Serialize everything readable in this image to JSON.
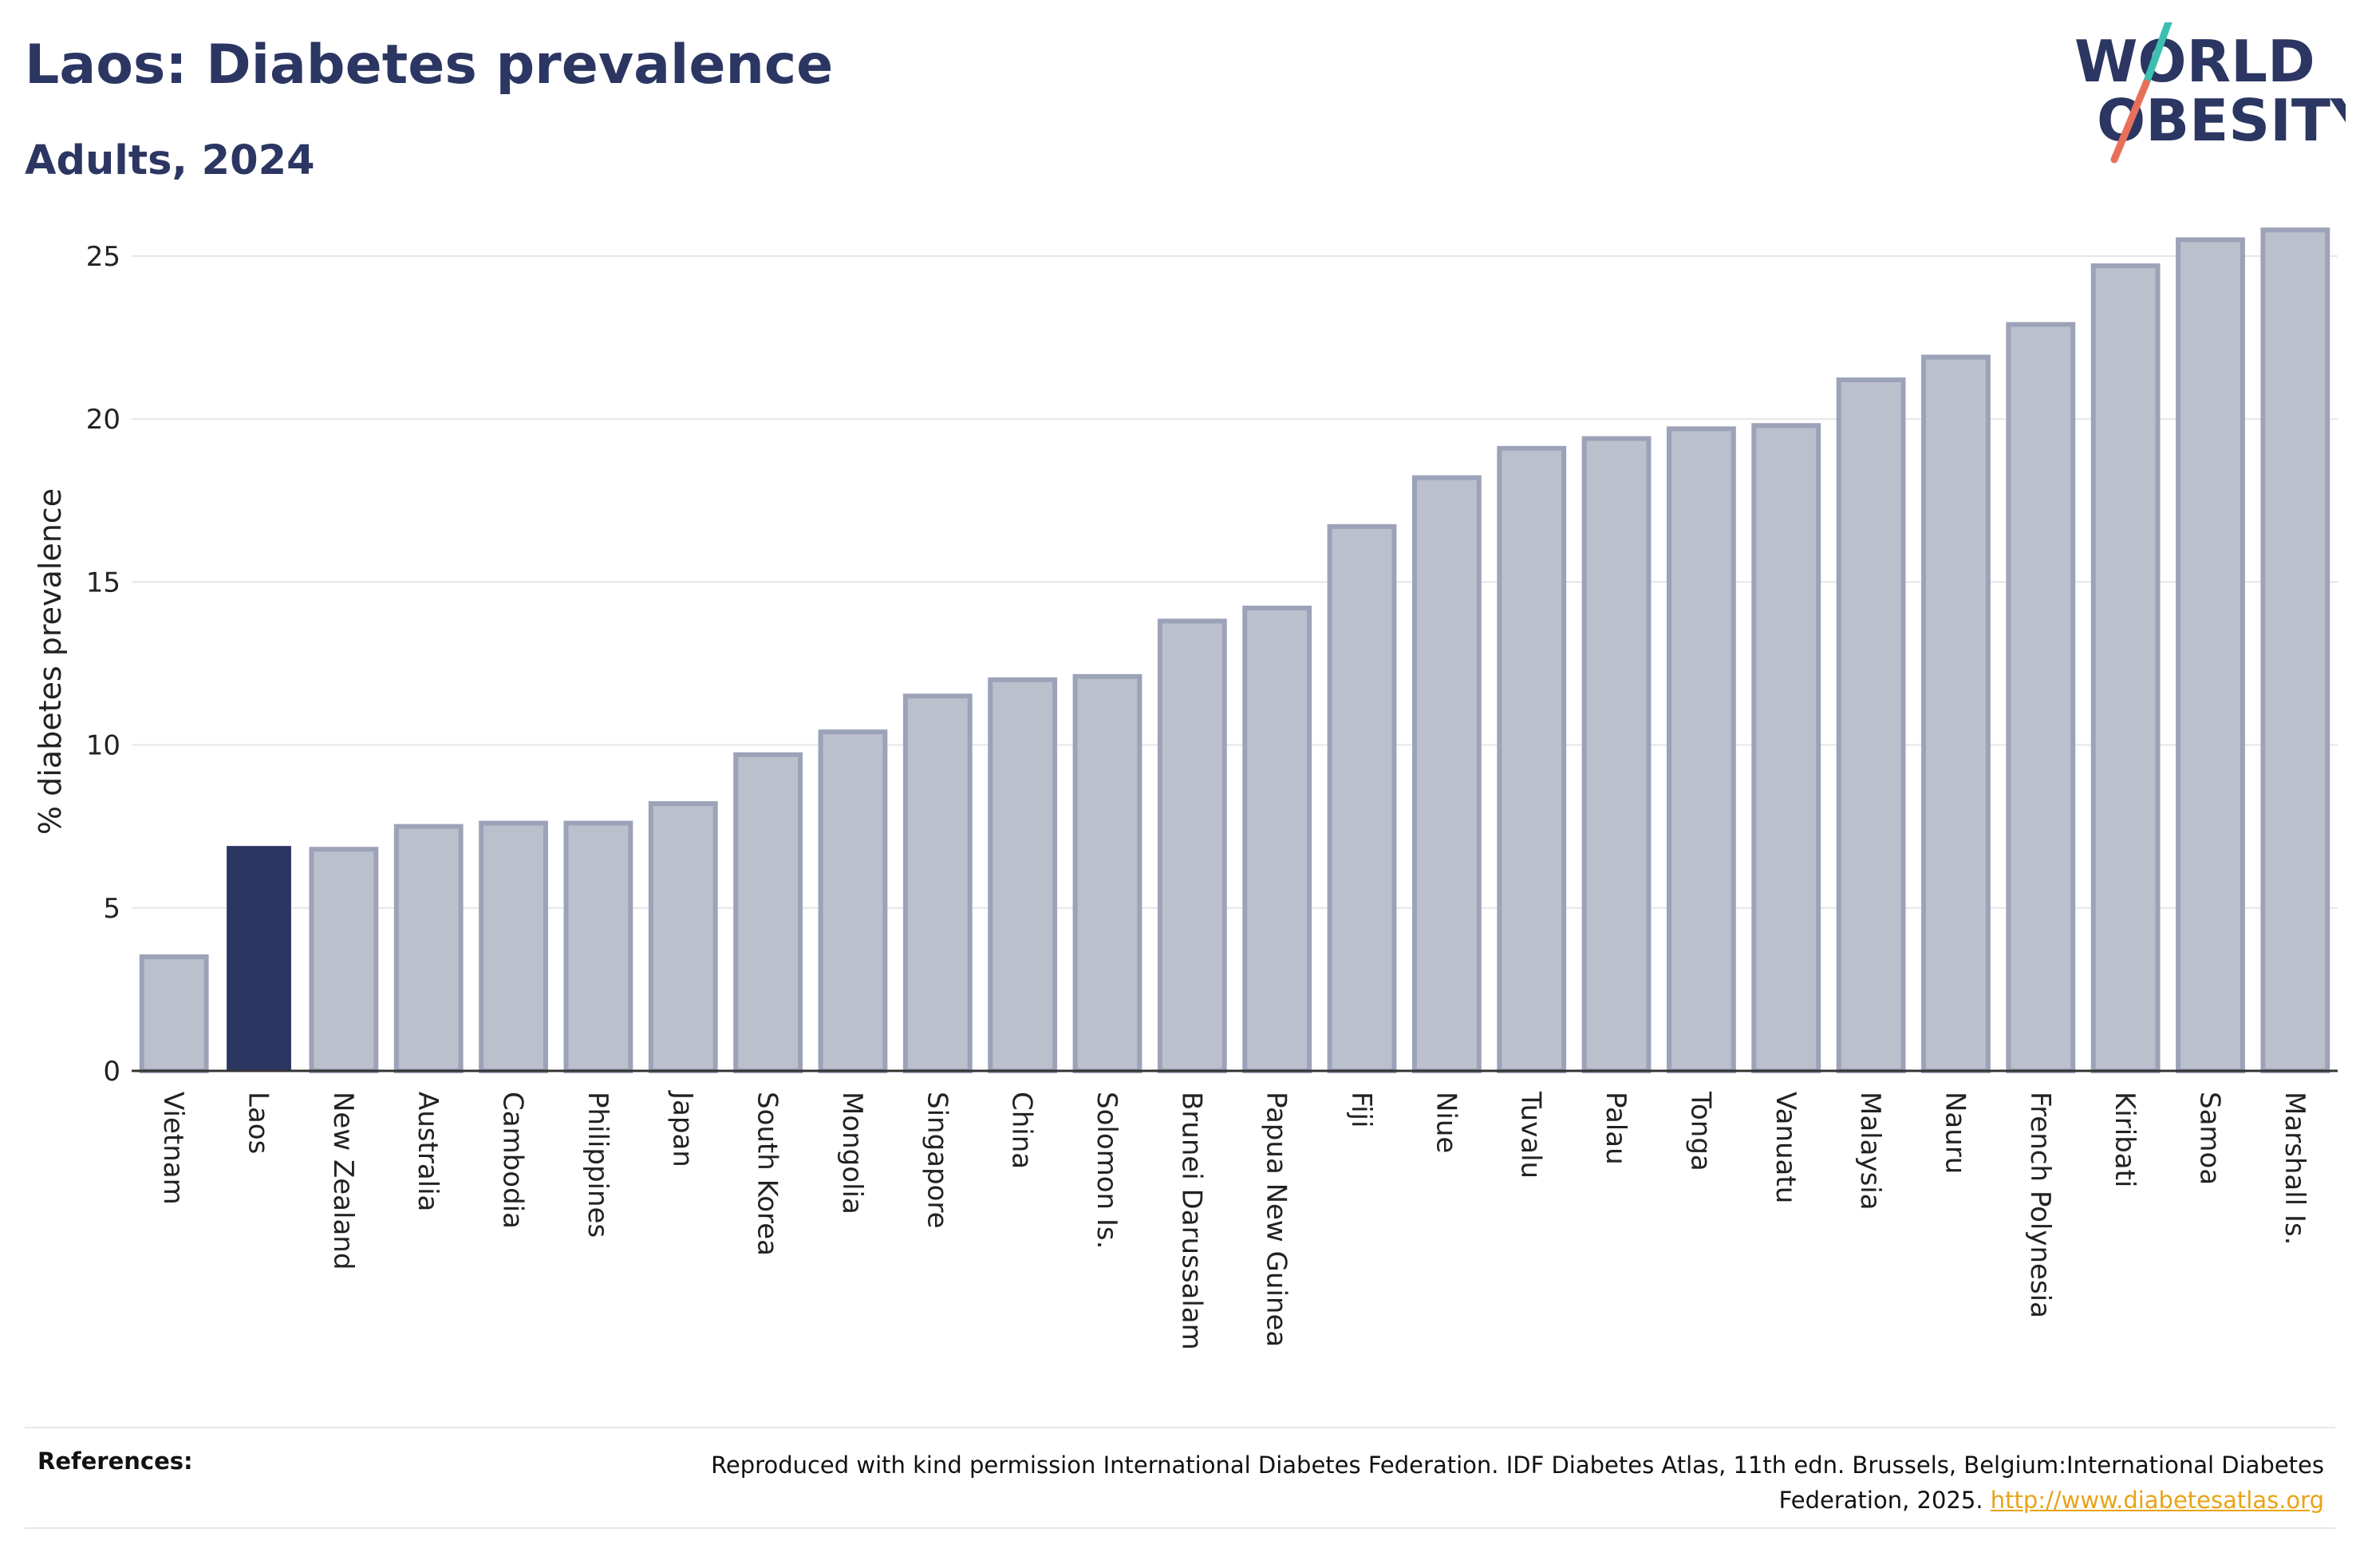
{
  "header": {
    "title": "Laos: Diabetes prevalence",
    "subtitle": "Adults, 2024"
  },
  "logo": {
    "line1": "WORLD",
    "line2": "OBESITY",
    "slash_colors": [
      "#3bbfb0",
      "#e8705a"
    ]
  },
  "colors": {
    "highlight": "#2c3662",
    "bar": "#bcc0cc",
    "bar_outline": "#9ca2b8",
    "link": "#e8a317"
  },
  "chart_data": {
    "type": "bar",
    "title": "Laos: Diabetes prevalence",
    "subtitle": "Adults, 2024",
    "xlabel": "",
    "ylabel": "% diabetes prevalence",
    "ylim": [
      0,
      26
    ],
    "yticks": [
      0,
      5,
      10,
      15,
      20,
      25
    ],
    "grid": true,
    "highlight": "Laos",
    "categories": [
      "Vietnam",
      "Laos",
      "New Zealand",
      "Australia",
      "Cambodia",
      "Philippines",
      "Japan",
      "South Korea",
      "Mongolia",
      "Singapore",
      "China",
      "Solomon Is.",
      "Brunei Darussalam",
      "Papua New Guinea",
      "Fiji",
      "Niue",
      "Tuvalu",
      "Palau",
      "Tonga",
      "Vanuatu",
      "Malaysia",
      "Nauru",
      "French Polynesia",
      "Kiribati",
      "Samoa",
      "Marshall Is."
    ],
    "values": [
      3.5,
      6.9,
      6.8,
      7.5,
      7.6,
      7.6,
      8.2,
      9.7,
      10.4,
      11.5,
      12.0,
      12.1,
      13.8,
      14.2,
      16.7,
      18.2,
      19.1,
      19.4,
      19.7,
      19.8,
      21.2,
      21.9,
      22.9,
      24.7,
      25.5,
      25.8
    ]
  },
  "references": {
    "label": "References:",
    "text": "Reproduced with kind permission International Diabetes Federation. IDF Diabetes Atlas, 11th edn. Brussels, Belgium:International Diabetes Federation, 2025.",
    "link": "http://www.diabetesatlas.org"
  }
}
